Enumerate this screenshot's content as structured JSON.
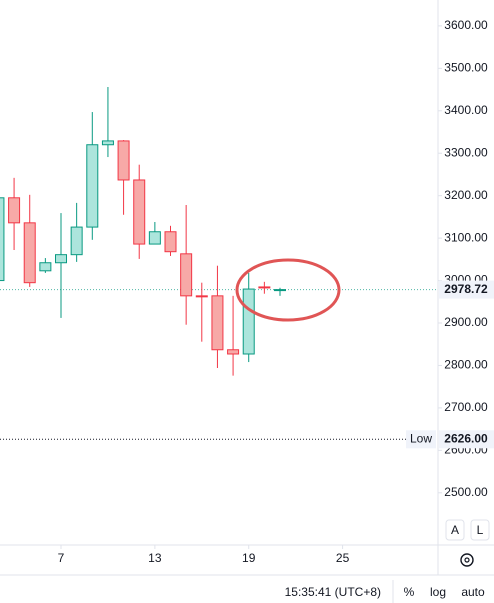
{
  "chart_data": {
    "type": "candlestick",
    "x": [
      3,
      4,
      5,
      6,
      7,
      8,
      9,
      10,
      11,
      12,
      13,
      14,
      15,
      16,
      17,
      18,
      19,
      20,
      21
    ],
    "open": [
      3000,
      3195,
      3136,
      3023,
      3042,
      3061,
      3126,
      3320,
      3329,
      3237,
      3086,
      3115,
      3063,
      2964,
      2964,
      2837,
      2827,
      2985,
      2977
    ],
    "high": [
      3195,
      3242,
      3202,
      3053,
      3159,
      3183,
      3397,
      3456,
      3331,
      3273,
      3138,
      3129,
      3178,
      2995,
      3035,
      2964,
      3018,
      2997,
      2983
    ],
    "low": [
      2990,
      3072,
      2985,
      3018,
      2912,
      3044,
      3096,
      3291,
      3155,
      3051,
      3086,
      3058,
      2896,
      2856,
      2794,
      2776,
      2808,
      2969,
      2964
    ],
    "close": [
      3195,
      3136,
      2995,
      3042,
      3061,
      3126,
      3320,
      3329,
      3237,
      3086,
      3115,
      3068,
      2964,
      2962,
      2837,
      2827,
      2980,
      2983,
      2978.72
    ],
    "up_color": "#089981",
    "up_fill": "#ace5dc",
    "down_color": "#f23645",
    "down_fill": "#f7a9a7",
    "xlim": [
      3.1,
      31.1
    ],
    "xticks": [
      7,
      13,
      19,
      25
    ],
    "ylim": [
      2377,
      3661
    ],
    "yticks": [
      {
        "value": 2500,
        "label": "2500.00"
      },
      {
        "value": 2600,
        "label": "2600.00"
      },
      {
        "value": 2700,
        "label": "2700.00"
      },
      {
        "value": 2800,
        "label": "2800.00"
      },
      {
        "value": 2900,
        "label": "2900.00"
      },
      {
        "value": 3000,
        "label": "3000.00"
      },
      {
        "value": 3100,
        "label": "3100.00"
      },
      {
        "value": 3200,
        "label": "3200.00"
      },
      {
        "value": 3300,
        "label": "3300.00"
      },
      {
        "value": 3400,
        "label": "3400.00"
      },
      {
        "value": 3500,
        "label": "3500.00"
      },
      {
        "value": 3600,
        "label": "3600.00"
      }
    ],
    "last_price": 2978.72,
    "low_line": {
      "name": "Low",
      "value": 2626,
      "label": "2626.00"
    }
  },
  "toolbar": {
    "time": "15:35:41 (UTC+8)",
    "buttons": [
      "%",
      "log",
      "auto"
    ],
    "scale_buttons": [
      "A",
      "L"
    ]
  }
}
